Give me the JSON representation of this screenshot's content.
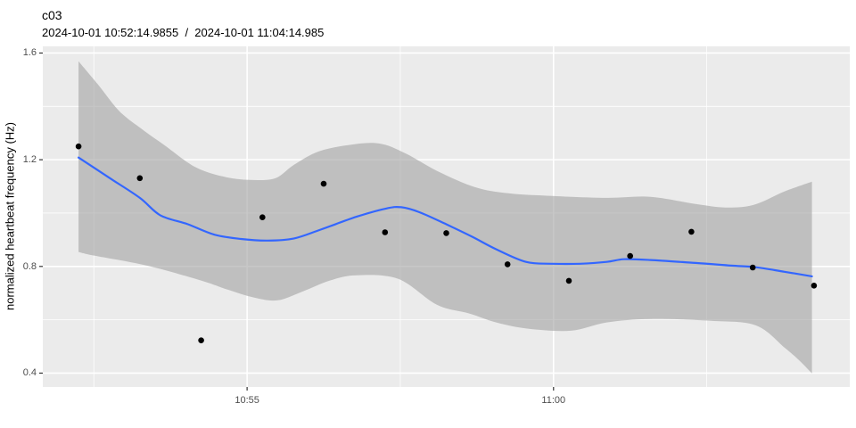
{
  "chart_data": {
    "type": "scatter",
    "title": "c03",
    "subtitle": "2024-10-01 10:52:14.9855  /  2024-10-01 11:04:14.985",
    "xlabel": "",
    "ylabel": "normalized heartbeat frequency (Hz)",
    "legend": "none",
    "grid": "on",
    "x_axis": {
      "unit": "time of day, seconds since 10:50:00",
      "domain": [
        100,
        890
      ],
      "major_ticks": [
        {
          "value": 300,
          "label": "10:55"
        },
        {
          "value": 600,
          "label": "11:00"
        }
      ],
      "minor_ticks": [
        150,
        450,
        750
      ]
    },
    "y_axis": {
      "domain": [
        0.348,
        1.625
      ],
      "major_ticks": [
        {
          "value": 0.4,
          "label": "0.4"
        },
        {
          "value": 0.8,
          "label": "0.8"
        },
        {
          "value": 1.2,
          "label": "1.2"
        },
        {
          "value": 1.6,
          "label": "1.6"
        }
      ],
      "minor_ticks": [
        0.6,
        1.0,
        1.4
      ]
    },
    "points": {
      "time_labels": [
        "10:52:15",
        "10:53:15",
        "10:54:15",
        "10:55:15",
        "10:56:15",
        "10:57:15",
        "10:58:15",
        "10:59:15",
        "11:00:15",
        "11:01:15",
        "11:02:15",
        "11:03:15",
        "11:04:15"
      ],
      "x": [
        135,
        195,
        255,
        315,
        375,
        435,
        495,
        555,
        615,
        675,
        735,
        795,
        855
      ],
      "y": [
        1.25,
        1.131,
        0.523,
        0.984,
        1.11,
        0.928,
        0.925,
        0.808,
        0.746,
        0.839,
        0.93,
        0.796,
        0.728
      ]
    },
    "smooth_line": {
      "x": [
        135,
        166,
        195,
        215,
        242,
        268,
        294,
        320,
        346,
        372,
        407,
        436,
        451,
        469,
        495,
        521,
        544,
        573,
        599,
        626,
        652,
        669,
        695,
        739,
        774,
        798,
        826,
        853
      ],
      "y": [
        1.208,
        1.13,
        1.057,
        0.992,
        0.958,
        0.919,
        0.903,
        0.897,
        0.905,
        0.938,
        0.986,
        1.017,
        1.022,
        1.003,
        0.958,
        0.91,
        0.864,
        0.817,
        0.81,
        0.81,
        0.817,
        0.827,
        0.824,
        0.813,
        0.803,
        0.797,
        0.78,
        0.763
      ]
    },
    "confidence_band": {
      "upper": {
        "x": [
          135,
          154,
          175,
          197,
          219,
          250,
          280,
          306,
          328,
          346,
          370,
          399,
          429,
          455,
          486,
          523,
          556,
          599,
          652,
          695,
          739,
          768,
          796,
          826,
          853
        ],
        "y": [
          1.569,
          1.482,
          1.382,
          1.315,
          1.255,
          1.171,
          1.134,
          1.124,
          1.131,
          1.181,
          1.231,
          1.255,
          1.261,
          1.224,
          1.158,
          1.097,
          1.074,
          1.064,
          1.057,
          1.061,
          1.034,
          1.021,
          1.031,
          1.081,
          1.118
        ]
      },
      "lower": {
        "x": [
          135,
          151,
          202,
          255,
          281,
          307,
          330,
          355,
          381,
          407,
          448,
          486,
          518,
          544,
          576,
          617,
          652,
          695,
          754,
          798,
          826,
          841,
          853
        ],
        "y": [
          0.854,
          0.84,
          0.803,
          0.747,
          0.713,
          0.683,
          0.673,
          0.707,
          0.747,
          0.767,
          0.753,
          0.656,
          0.623,
          0.59,
          0.566,
          0.559,
          0.59,
          0.603,
          0.596,
          0.579,
          0.496,
          0.446,
          0.399
        ]
      }
    },
    "colors": {
      "panel_background": "#ebebeb",
      "gridline": "#ffffff",
      "band_fill": "#9e9e9e",
      "band_opacity": 0.58,
      "smooth_line": "#3366ff",
      "point": "#000000",
      "tick_mark": "#333333",
      "tick_text": "#4d4d4d",
      "title_text": "#000000"
    }
  }
}
